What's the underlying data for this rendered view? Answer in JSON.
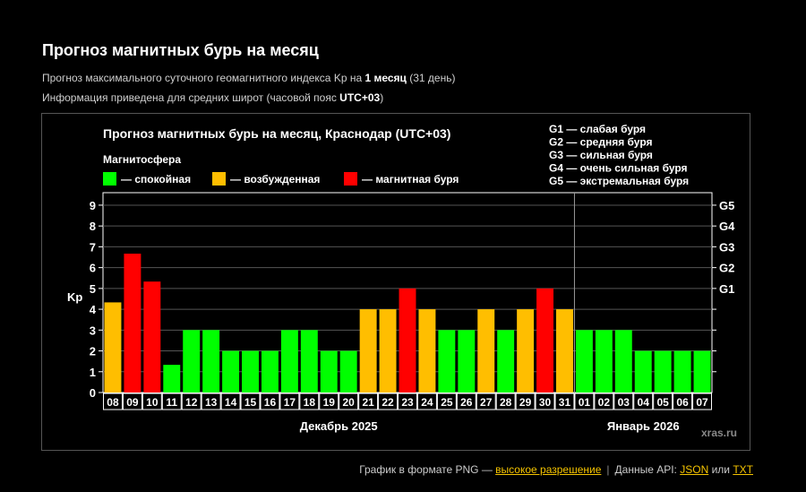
{
  "page": {
    "title": "Прогноз магнитных бурь на месяц",
    "subtitle1_pre": "Прогноз максимального суточного геомагнитного индекса Kp на ",
    "subtitle1_bold": "1 месяц",
    "subtitle1_post": " (31 день)",
    "subtitle2_pre": "Информация приведена для средних широт (часовой пояс ",
    "subtitle2_bold": "UTC+03",
    "subtitle2_post": ")"
  },
  "footer": {
    "png_text": "График в формате PNG — ",
    "png_link": "высокое разрешение",
    "separator": "|",
    "api_text": "Данные API: ",
    "api_json": "JSON",
    "api_or": " или ",
    "api_txt": "TXT"
  },
  "chart_data": {
    "type": "bar",
    "title": "Прогноз магнитных бурь на месяц, Краснодар (UTC+03)",
    "ylabel": "Kp",
    "ylim": [
      0,
      9.6
    ],
    "yticks": [
      0,
      1,
      2,
      3,
      4,
      5,
      6,
      7,
      8,
      9
    ],
    "right_ticks": [
      {
        "value": 5,
        "label": "G1"
      },
      {
        "value": 6,
        "label": "G2"
      },
      {
        "value": 7,
        "label": "G3"
      },
      {
        "value": 8,
        "label": "G4"
      },
      {
        "value": 9,
        "label": "G5"
      }
    ],
    "right_minor_ticks": [
      1,
      2,
      3,
      4
    ],
    "legend_title": "Магнитосфера",
    "legend": [
      {
        "key": "calm",
        "label": "— спокойная",
        "color": "#00ff00"
      },
      {
        "key": "excited",
        "label": "— возбужденная",
        "color": "#ffbe00"
      },
      {
        "key": "storm",
        "label": "— магнитная буря",
        "color": "#ff0000"
      }
    ],
    "scale_legend": [
      "G1 — слабая буря",
      "G2 — средняя буря",
      "G3 — сильная буря",
      "G4 — очень сильная буря",
      "G5 — экстремальная буря"
    ],
    "categories": [
      "08",
      "09",
      "10",
      "11",
      "12",
      "13",
      "14",
      "15",
      "16",
      "17",
      "18",
      "19",
      "20",
      "21",
      "22",
      "23",
      "24",
      "25",
      "26",
      "27",
      "28",
      "29",
      "30",
      "31",
      "01",
      "02",
      "03",
      "04",
      "05",
      "06",
      "07"
    ],
    "values": [
      4.33,
      6.67,
      5.33,
      1.33,
      3,
      3,
      2,
      2,
      2,
      3,
      3,
      2,
      2,
      4,
      4,
      5,
      4,
      3,
      3,
      4,
      3,
      4,
      5,
      4,
      3,
      3,
      3,
      2,
      2,
      2,
      2
    ],
    "levels": [
      "excited",
      "storm",
      "storm",
      "calm",
      "calm",
      "calm",
      "calm",
      "calm",
      "calm",
      "calm",
      "calm",
      "calm",
      "calm",
      "excited",
      "excited",
      "storm",
      "excited",
      "calm",
      "calm",
      "excited",
      "calm",
      "excited",
      "storm",
      "excited",
      "calm",
      "calm",
      "calm",
      "calm",
      "calm",
      "calm",
      "calm"
    ],
    "month_groups": [
      {
        "label": "Декабрь 2025",
        "start": 0,
        "end": 23
      },
      {
        "label": "Январь 2026",
        "start": 24,
        "end": 30
      }
    ],
    "watermark": "xras.ru"
  }
}
